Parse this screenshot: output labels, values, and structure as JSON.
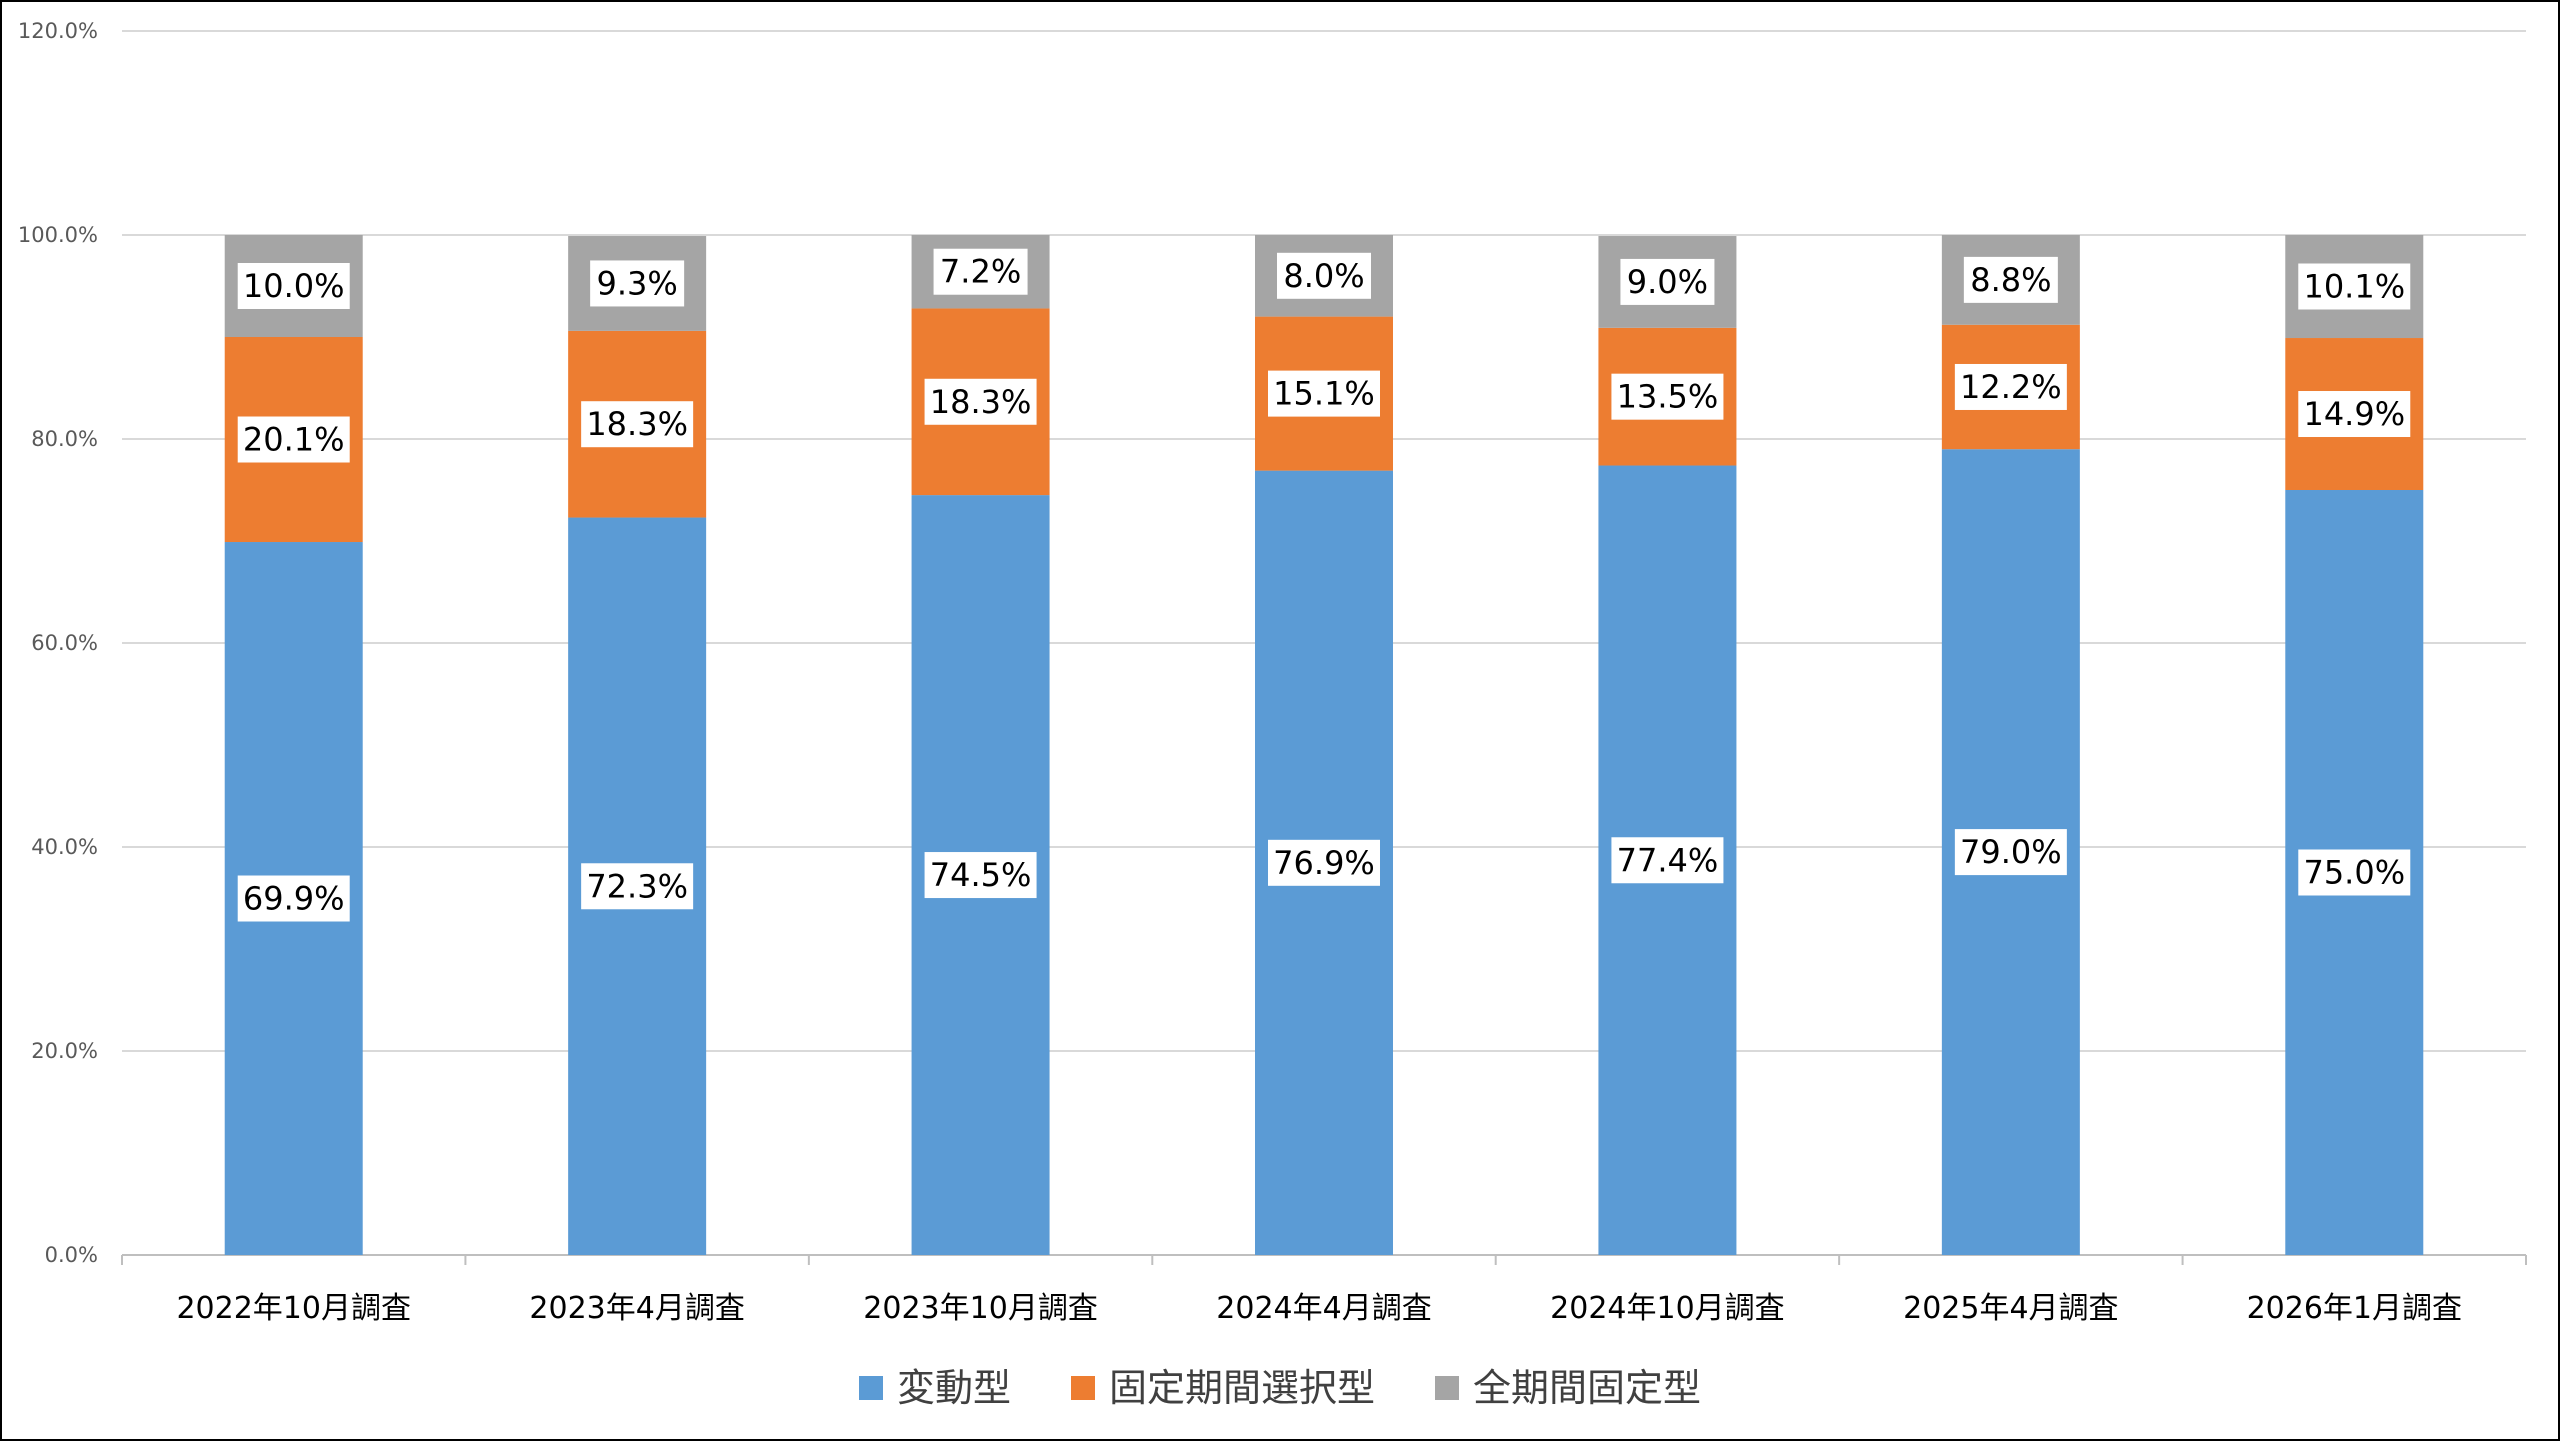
{
  "chart_data": {
    "type": "bar",
    "stacked": true,
    "categories": [
      "2022年10月調査",
      "2023年4月調査",
      "2023年10月調査",
      "2024年4月調査",
      "2024年10月調査",
      "2025年4月調査",
      "2026年1月調査"
    ],
    "series": [
      {
        "name": "変動型",
        "color": "#5B9BD5",
        "values": [
          69.9,
          72.3,
          74.5,
          76.9,
          77.4,
          79.0,
          75.0
        ],
        "labels": [
          "69.9%",
          "72.3%",
          "74.5%",
          "76.9%",
          "77.4%",
          "79.0%",
          "75.0%"
        ]
      },
      {
        "name": "固定期間選択型",
        "color": "#ED7D31",
        "values": [
          20.1,
          18.3,
          18.3,
          15.1,
          13.5,
          12.2,
          14.9
        ],
        "labels": [
          "20.1%",
          "18.3%",
          "18.3%",
          "15.1%",
          "13.5%",
          "12.2%",
          "14.9%"
        ]
      },
      {
        "name": "全期間固定型",
        "color": "#A5A5A5",
        "values": [
          10.0,
          9.3,
          7.2,
          8.0,
          9.0,
          8.8,
          10.1
        ],
        "labels": [
          "10.0%",
          "9.3%",
          "7.2%",
          "8.0%",
          "9.0%",
          "8.8%",
          "10.1%"
        ]
      }
    ],
    "y_ticks": [
      "0.0%",
      "20.0%",
      "40.0%",
      "60.0%",
      "80.0%",
      "100.0%",
      "120.0%"
    ],
    "ylim": [
      0,
      120
    ],
    "grid": true,
    "legend_position": "bottom",
    "title": "",
    "xlabel": "",
    "ylabel": ""
  }
}
